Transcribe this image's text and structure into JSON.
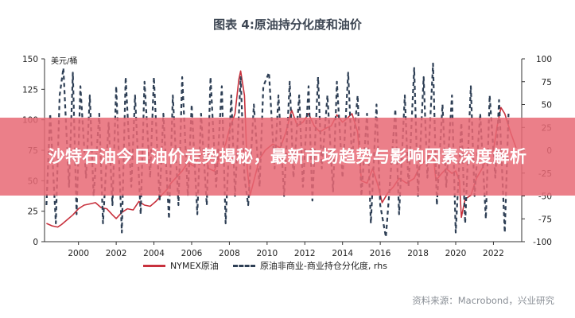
{
  "title": "图表 4:原油持分化度和油价",
  "banner": "沙特石油今日油价走势揭秘，最新市场趋势与影响因素深度解析",
  "source": "资料来源：Macrobond，兴业研究",
  "unit_left": "美元/桶",
  "colors": {
    "nymex": "#c8313d",
    "position": "#2e3f55",
    "banner": "#e86874"
  },
  "chart_data": {
    "type": "line",
    "title": "图表 4:原油持分化度和油价",
    "xlabel": "",
    "ylabel": "美元/桶",
    "xlim": [
      1998.2,
      2023.5
    ],
    "ylim_left": [
      0,
      150
    ],
    "ylim_right": [
      -100,
      100
    ],
    "x_ticks": [
      "2000",
      "2002",
      "2004",
      "2006",
      "2008",
      "2010",
      "2012",
      "2014",
      "2016",
      "2018",
      "2020",
      "2022"
    ],
    "y_ticks_left": [
      "0",
      "25",
      "50",
      "75",
      "100",
      "125",
      "150"
    ],
    "y_ticks_right": [
      "-100",
      "-75",
      "-50",
      "-25",
      "0",
      "25",
      "50",
      "75",
      "100"
    ],
    "legend": [
      "NYMEX原油",
      "原油非商业-商业持仓分化度, rhs"
    ],
    "series": [
      {
        "name": "NYMEX原油",
        "axis": "left",
        "x": [
          1998.3,
          1998.6,
          1998.9,
          1999.1,
          1999.4,
          1999.7,
          2000.0,
          2000.3,
          2000.6,
          2000.9,
          2001.2,
          2001.5,
          2001.8,
          2002.0,
          2002.3,
          2002.6,
          2002.9,
          2003.2,
          2003.5,
          2003.8,
          2004.1,
          2004.4,
          2004.7,
          2004.9,
          2005.2,
          2005.5,
          2005.8,
          2006.1,
          2006.4,
          2006.7,
          2006.9,
          2007.2,
          2007.5,
          2007.8,
          2008.0,
          2008.3,
          2008.5,
          2008.6,
          2008.8,
          2008.95,
          2009.1,
          2009.3,
          2009.6,
          2009.9,
          2010.3,
          2010.7,
          2011.0,
          2011.3,
          2011.6,
          2011.9,
          2012.2,
          2012.5,
          2012.8,
          2013.1,
          2013.4,
          2013.7,
          2014.0,
          2014.3,
          2014.5,
          2014.8,
          2015.0,
          2015.3,
          2015.6,
          2015.9,
          2016.1,
          2016.4,
          2016.7,
          2017.0,
          2017.4,
          2017.8,
          2018.1,
          2018.5,
          2018.8,
          2018.95,
          2019.2,
          2019.5,
          2019.8,
          2020.0,
          2020.2,
          2020.3,
          2020.5,
          2020.8,
          2021.1,
          2021.4,
          2021.7,
          2022.0,
          2022.2,
          2022.4,
          2022.6,
          2022.9,
          2023.2
        ],
        "y": [
          15,
          13,
          12,
          14,
          18,
          22,
          27,
          30,
          31,
          32,
          28,
          27,
          22,
          19,
          24,
          27,
          26,
          33,
          30,
          29,
          33,
          38,
          43,
          48,
          53,
          58,
          65,
          62,
          70,
          74,
          60,
          58,
          70,
          80,
          92,
          105,
          133,
          140,
          120,
          60,
          38,
          50,
          68,
          75,
          80,
          77,
          90,
          108,
          95,
          98,
          105,
          95,
          90,
          93,
          95,
          104,
          98,
          102,
          105,
          90,
          50,
          48,
          60,
          45,
          32,
          40,
          45,
          52,
          48,
          52,
          62,
          68,
          75,
          50,
          55,
          60,
          56,
          58,
          50,
          20,
          35,
          38,
          52,
          60,
          70,
          75,
          95,
          110,
          105,
          90,
          77
        ]
      },
      {
        "name": "原油非商业-商业持仓分化度, rhs",
        "axis": "right",
        "x": [
          1998.3,
          1998.5,
          1998.8,
          1999.0,
          1999.2,
          1999.5,
          1999.7,
          1999.9,
          2000.1,
          2000.4,
          2000.6,
          2000.8,
          2001.1,
          2001.3,
          2001.6,
          2001.8,
          2002.0,
          2002.3,
          2002.5,
          2002.8,
          2003.0,
          2003.3,
          2003.5,
          2003.8,
          2004.0,
          2004.3,
          2004.5,
          2004.8,
          2005.0,
          2005.3,
          2005.5,
          2005.8,
          2006.0,
          2006.3,
          2006.5,
          2006.8,
          2007.0,
          2007.3,
          2007.6,
          2007.8,
          2008.1,
          2008.3,
          2008.6,
          2008.8,
          2009.0,
          2009.3,
          2009.6,
          2009.8,
          2010.1,
          2010.4,
          2010.6,
          2010.9,
          2011.2,
          2011.4,
          2011.7,
          2011.9,
          2012.2,
          2012.4,
          2012.7,
          2012.9,
          2013.2,
          2013.5,
          2013.7,
          2014.0,
          2014.3,
          2014.5,
          2014.8,
          2015.0,
          2015.3,
          2015.5,
          2015.8,
          2016.0,
          2016.3,
          2016.5,
          2016.8,
          2017.0,
          2017.3,
          2017.5,
          2017.8,
          2018.0,
          2018.3,
          2018.5,
          2018.8,
          2019.0,
          2019.3,
          2019.5,
          2019.8,
          2020.0,
          2020.3,
          2020.5,
          2020.8,
          2021.0,
          2021.3,
          2021.6,
          2021.8,
          2022.1,
          2022.3,
          2022.6,
          2022.8
        ],
        "y": [
          -60,
          40,
          -80,
          60,
          90,
          -40,
          85,
          -70,
          70,
          -30,
          60,
          -50,
          40,
          -80,
          30,
          -60,
          70,
          -90,
          80,
          -40,
          60,
          -70,
          75,
          -30,
          80,
          -55,
          40,
          -75,
          60,
          -60,
          80,
          -50,
          50,
          -70,
          40,
          -60,
          80,
          -40,
          70,
          -80,
          60,
          -50,
          80,
          -30,
          -60,
          50,
          -40,
          70,
          85,
          -20,
          60,
          -50,
          75,
          -30,
          60,
          -40,
          70,
          -55,
          80,
          -20,
          60,
          -45,
          75,
          -30,
          85,
          -10,
          60,
          -50,
          40,
          -80,
          50,
          -60,
          -95,
          -40,
          45,
          -70,
          60,
          -40,
          90,
          -50,
          80,
          -30,
          95,
          -60,
          50,
          -40,
          60,
          -90,
          30,
          -80,
          70,
          -50,
          40,
          -75,
          60,
          -30,
          55,
          -90,
          40
        ]
      }
    ]
  }
}
